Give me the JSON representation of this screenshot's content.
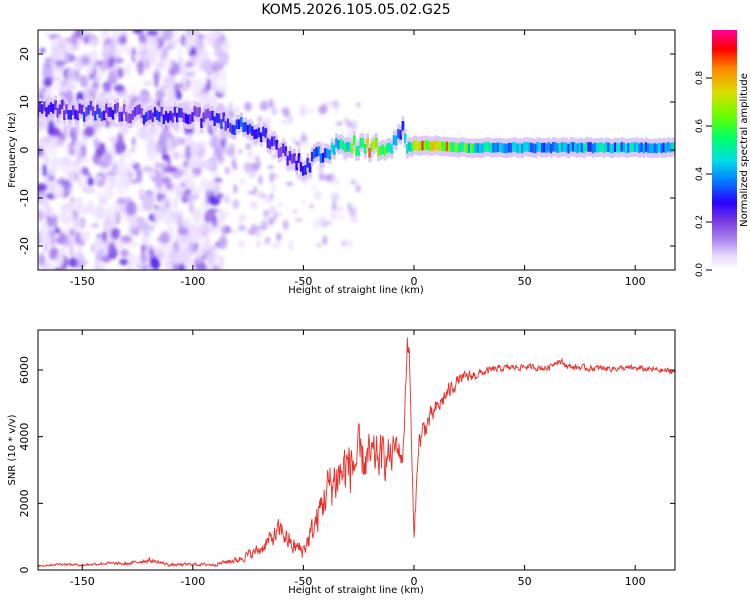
{
  "chart_data": [
    {
      "type": "heatmap",
      "title": "KOM5.2026.105.05.02.G25",
      "xlabel": "Height of straight line (km)",
      "ylabel": "Frequency (Hz)",
      "xlim": [
        -170,
        118
      ],
      "ylim": [
        -25,
        25
      ],
      "x_ticks": [
        -150,
        -100,
        -50,
        0,
        50,
        100
      ],
      "y_ticks": [
        -20,
        -10,
        0,
        10,
        20
      ],
      "ridge": {
        "x": [
          -170,
          -160,
          -150,
          -140,
          -130,
          -120,
          -110,
          -100,
          -90,
          -80,
          -75,
          -70,
          -65,
          -60,
          -55,
          -50,
          -45,
          -40,
          -35,
          -30,
          -25,
          -20,
          -15,
          -10,
          -7,
          -5,
          -3,
          0,
          10,
          20,
          30,
          50,
          70,
          90,
          110,
          118
        ],
        "y": [
          9,
          8.5,
          8,
          8,
          7.5,
          7.5,
          7,
          7,
          6.5,
          5,
          4.5,
          3.5,
          2,
          0,
          -2,
          -3.5,
          -2,
          0,
          0.5,
          0.5,
          1,
          0.5,
          0.5,
          1,
          3,
          4,
          1,
          1,
          1,
          0.5,
          0.5,
          0.5,
          0.5,
          0.5,
          0.5,
          0.5
        ],
        "amplitude": [
          0.3,
          0.3,
          0.35,
          0.35,
          0.3,
          0.35,
          0.35,
          0.3,
          0.35,
          0.35,
          0.4,
          0.35,
          0.35,
          0.3,
          0.3,
          0.35,
          0.4,
          0.45,
          0.55,
          0.6,
          0.7,
          0.8,
          0.85,
          0.5,
          0.4,
          0.4,
          0.6,
          0.75,
          0.95,
          0.7,
          0.55,
          0.5,
          0.5,
          0.5,
          0.5,
          0.5
        ]
      },
      "colorbar": {
        "label": "Normalized spectral amplitude",
        "range": [
          0,
          1
        ],
        "ticks": [
          0.0,
          0.2,
          0.4,
          0.6,
          0.8
        ],
        "tick_labels": [
          "0.0",
          "0.2",
          "0.4",
          "0.6",
          "0.8"
        ],
        "colormap": [
          "#ffffff",
          "#e8d8ff",
          "#b08af0",
          "#7a3ee0",
          "#2a00ff",
          "#0088ff",
          "#00e0e0",
          "#00ff66",
          "#66ff00",
          "#dddd00",
          "#ff8800",
          "#ff0000",
          "#ff0099"
        ]
      }
    },
    {
      "type": "line",
      "xlabel": "Height of straight line (km)",
      "ylabel": "SNR (10 * v/v)",
      "xlim": [
        -170,
        118
      ],
      "ylim": [
        0,
        7200
      ],
      "x_ticks": [
        -150,
        -100,
        -50,
        0,
        50,
        100
      ],
      "y_ticks": [
        0,
        2000,
        4000,
        6000
      ],
      "series": [
        {
          "name": "SNR",
          "color": "#e8302a",
          "x": [
            -170,
            -160,
            -150,
            -140,
            -130,
            -120,
            -110,
            -100,
            -90,
            -85,
            -80,
            -75,
            -70,
            -65,
            -60,
            -55,
            -50,
            -45,
            -40,
            -35,
            -30,
            -25,
            -20,
            -15,
            -10,
            -8,
            -5,
            -3,
            -2,
            0,
            2,
            5,
            10,
            15,
            20,
            25,
            30,
            35,
            40,
            50,
            60,
            65,
            70,
            80,
            90,
            100,
            110,
            118
          ],
          "y": [
            120,
            180,
            150,
            200,
            180,
            300,
            150,
            170,
            160,
            250,
            300,
            450,
            600,
            900,
            1200,
            700,
            600,
            1300,
            2300,
            2800,
            3100,
            3300,
            3300,
            3400,
            3400,
            3800,
            3300,
            7000,
            6200,
            800,
            3800,
            4300,
            4800,
            5300,
            5700,
            5800,
            5900,
            6000,
            6050,
            6100,
            6050,
            6300,
            6100,
            6050,
            6050,
            6050,
            6000,
            5950
          ],
          "amplitude": [
            30,
            40,
            40,
            50,
            50,
            80,
            50,
            50,
            50,
            80,
            100,
            160,
            200,
            300,
            400,
            300,
            300,
            500,
            800,
            900,
            1000,
            900,
            800,
            700,
            600,
            500,
            400,
            400,
            400,
            200,
            400,
            400,
            300,
            300,
            200,
            200,
            150,
            120,
            120,
            100,
            100,
            120,
            100,
            100,
            100,
            100,
            100,
            100
          ]
        }
      ]
    }
  ]
}
